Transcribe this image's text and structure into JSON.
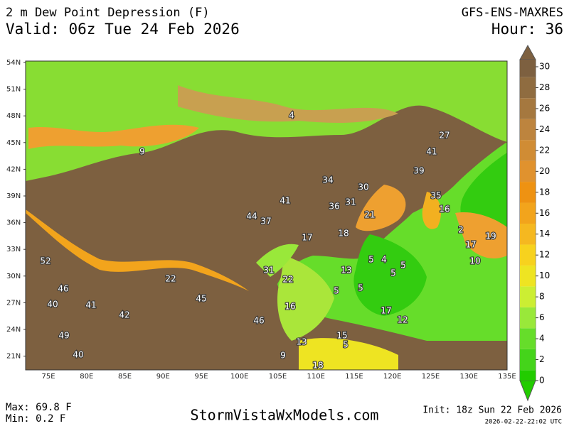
{
  "header": {
    "title": "2 m Dew Point Depression (F)",
    "valid": "Valid: 06z Tue 24 Feb 2026",
    "model": "GFS-ENS-MAXRES",
    "hour": "Hour: 36"
  },
  "map": {
    "lat_labels": [
      "54N",
      "51N",
      "48N",
      "45N",
      "42N",
      "39N",
      "36N",
      "33N",
      "30N",
      "27N",
      "24N",
      "21N"
    ],
    "lon_labels": [
      "75E",
      "80E",
      "85E",
      "90E",
      "95E",
      "100E",
      "105E",
      "110E",
      "115E",
      "120E",
      "125E",
      "130E",
      "135E"
    ],
    "point_values": [
      4,
      27,
      9,
      41,
      39,
      34,
      30,
      41,
      35,
      36,
      31,
      16,
      21,
      44,
      37,
      17,
      18,
      2,
      19,
      17,
      52,
      5,
      4,
      5,
      10,
      31,
      13,
      5,
      22,
      22,
      46,
      5,
      5,
      45,
      40,
      41,
      16,
      42,
      17,
      46,
      12,
      49,
      15,
      13,
      5,
      40,
      9,
      18
    ]
  },
  "colorbar": {
    "ticks": [
      0,
      2,
      4,
      6,
      8,
      10,
      12,
      14,
      16,
      18,
      20,
      22,
      24,
      26,
      28,
      30
    ],
    "colors": [
      "#22cc00",
      "#44d41a",
      "#66dd2a",
      "#99e83a",
      "#ccee33",
      "#eee422",
      "#f7d21e",
      "#f5b820",
      "#f2a41c",
      "#ee9212",
      "#e0922e",
      "#d08c34",
      "#bd843e",
      "#a5783f",
      "#8f6c40",
      "#7d6040"
    ]
  },
  "footer": {
    "max": "Max: 69.8 F",
    "min": "Min: 0.2 F",
    "site": "StormVistaWxModels.com",
    "init": "Init: 18z Sun 22 Feb 2026",
    "stamp": "2026-02-22-22:02 UTC"
  }
}
